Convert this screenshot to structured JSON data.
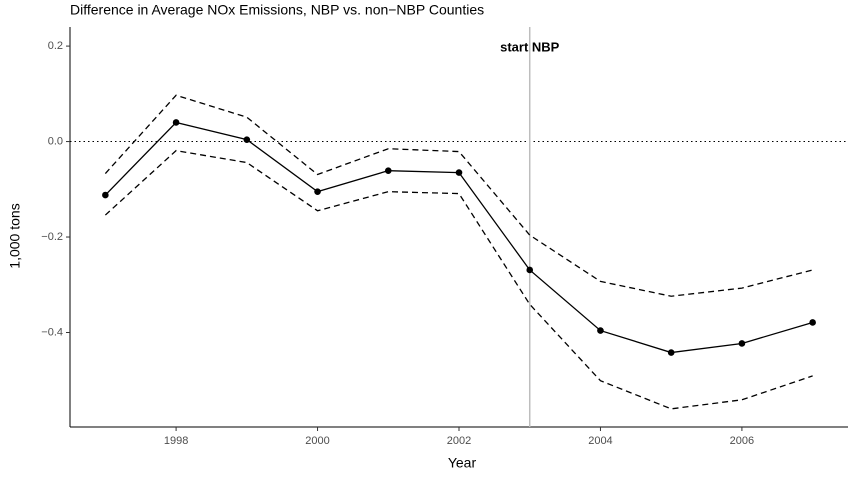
{
  "chart_data": {
    "type": "line",
    "title": "Difference in Average NOx Emissions, NBP vs. non−NBP Counties",
    "x_label": "Year",
    "y_label": "1,000 tons",
    "x": [
      1997,
      1998,
      1999,
      2000,
      2001,
      2002,
      2003,
      2004,
      2005,
      2006,
      2007
    ],
    "series": [
      {
        "color": "#000000",
        "dash": "solid",
        "markers": true,
        "values": [
          -0.112,
          0.04,
          0.004,
          -0.105,
          -0.061,
          -0.065,
          -0.269,
          -0.396,
          -0.442,
          -0.423,
          -0.379
        ]
      },
      {
        "color": "#000000",
        "dash": "dashed",
        "markers": false,
        "values": [
          -0.067,
          0.097,
          0.051,
          -0.069,
          -0.015,
          -0.021,
          -0.196,
          -0.293,
          -0.324,
          -0.307,
          -0.269
        ]
      },
      {
        "color": "#000000",
        "dash": "dashed",
        "markers": false,
        "values": [
          -0.154,
          -0.019,
          -0.044,
          -0.145,
          -0.105,
          -0.109,
          -0.341,
          -0.501,
          -0.56,
          -0.541,
          -0.491
        ]
      }
    ],
    "hline": 0,
    "vline": 2003,
    "annotation": "start NBP",
    "xlim": [
      1996.5,
      2007.5
    ],
    "xticks": [
      1998,
      2000,
      2002,
      2004,
      2006
    ],
    "ylim": [
      -0.598,
      0.24
    ],
    "yticks": [
      {
        "value": -0.4,
        "label": "−0.4"
      },
      {
        "value": -0.2,
        "label": "−0.2"
      },
      {
        "value": 0,
        "label": "0.0"
      },
      0.2
    ],
    "grid": false
  }
}
